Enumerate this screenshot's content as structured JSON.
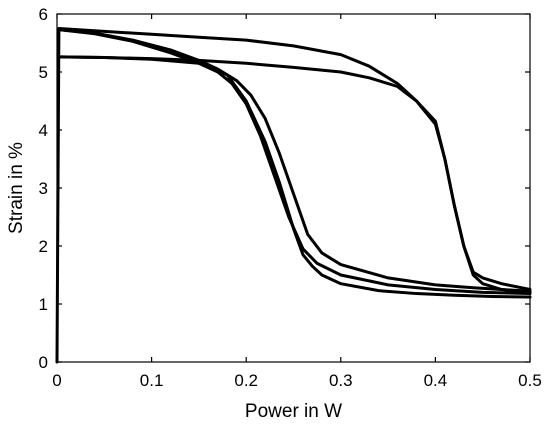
{
  "chart_data": {
    "type": "line",
    "title": "",
    "xlabel": "Power in W",
    "ylabel": "Strain in %",
    "xlim": [
      0,
      0.5
    ],
    "ylim": [
      0,
      6
    ],
    "xticks": [
      0,
      0.1,
      0.2,
      0.3,
      0.4,
      0.5
    ],
    "yticks": [
      0,
      1,
      2,
      3,
      4,
      5,
      6
    ],
    "xtick_labels": [
      "0",
      "0.1",
      "0.2",
      "0.3",
      "0.4",
      "0.5"
    ],
    "ytick_labels": [
      "0",
      "1",
      "2",
      "3",
      "4",
      "5",
      "6"
    ],
    "grid": false,
    "legend": "none",
    "series": [
      {
        "x": [
          0,
          0.002,
          0.05,
          0.1,
          0.15,
          0.2,
          0.25,
          0.3,
          0.33,
          0.36,
          0.38,
          0.4,
          0.41,
          0.42,
          0.43,
          0.44,
          0.45,
          0.47,
          0.5
        ],
        "y": [
          0,
          5.75,
          5.7,
          5.65,
          5.6,
          5.55,
          5.45,
          5.3,
          5.1,
          4.8,
          4.5,
          4.15,
          3.5,
          2.7,
          2.0,
          1.55,
          1.45,
          1.35,
          1.25
        ]
      },
      {
        "x": [
          0.5,
          0.47,
          0.44,
          0.4,
          0.35,
          0.3,
          0.28,
          0.265,
          0.25,
          0.235,
          0.22,
          0.205,
          0.19,
          0.17,
          0.15,
          0.12,
          0.08,
          0.04,
          0.002
        ],
        "y": [
          1.22,
          1.25,
          1.28,
          1.33,
          1.45,
          1.68,
          1.88,
          2.2,
          2.9,
          3.6,
          4.2,
          4.6,
          4.85,
          5.05,
          5.2,
          5.38,
          5.55,
          5.67,
          5.73
        ]
      },
      {
        "x": [
          0.002,
          0.04,
          0.08,
          0.12,
          0.15,
          0.17,
          0.185,
          0.2,
          0.215,
          0.23,
          0.245,
          0.26,
          0.275,
          0.3,
          0.35,
          0.4,
          0.45,
          0.5
        ],
        "y": [
          5.73,
          5.66,
          5.53,
          5.33,
          5.15,
          5.0,
          4.8,
          4.45,
          3.9,
          3.2,
          2.5,
          1.95,
          1.7,
          1.5,
          1.33,
          1.25,
          1.2,
          1.18
        ]
      },
      {
        "x": [
          0.5,
          0.46,
          0.42,
          0.38,
          0.34,
          0.3,
          0.28,
          0.27,
          0.26,
          0.25,
          0.235,
          0.22,
          0.2,
          0.18,
          0.15,
          0.1,
          0.05,
          0.002
        ],
        "y": [
          1.12,
          1.13,
          1.15,
          1.18,
          1.23,
          1.35,
          1.5,
          1.65,
          1.85,
          2.3,
          3.1,
          3.8,
          4.5,
          4.95,
          5.15,
          5.22,
          5.25,
          5.26
        ]
      },
      {
        "x": [
          0.002,
          0.05,
          0.1,
          0.15,
          0.2,
          0.25,
          0.3,
          0.33,
          0.36,
          0.38,
          0.4,
          0.41,
          0.42,
          0.43,
          0.44,
          0.45,
          0.47,
          0.5
        ],
        "y": [
          5.26,
          5.25,
          5.23,
          5.2,
          5.15,
          5.08,
          5.0,
          4.9,
          4.75,
          4.5,
          4.1,
          3.5,
          2.7,
          2.0,
          1.5,
          1.35,
          1.25,
          1.2
        ]
      }
    ]
  }
}
